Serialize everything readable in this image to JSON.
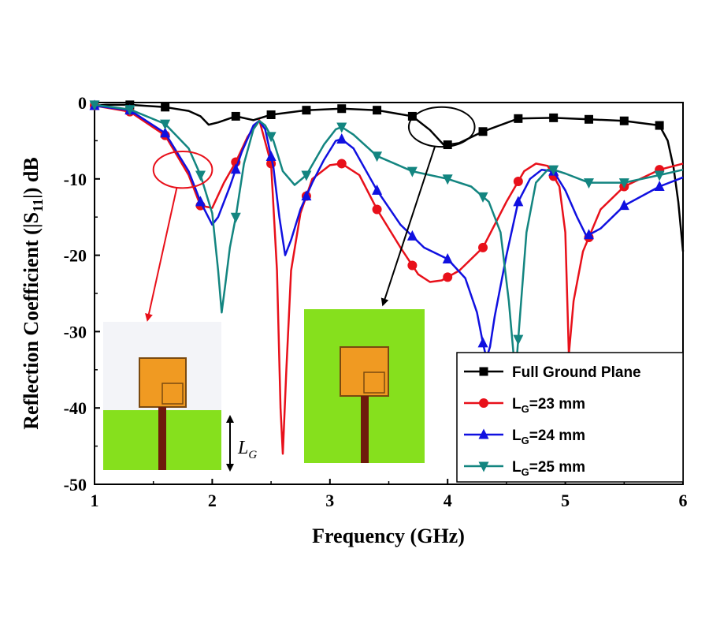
{
  "colors": {
    "full": "#000000",
    "lg23": "#e8101a",
    "lg24": "#1010e0",
    "lg25": "#138580",
    "substrate": "#f3f4f8",
    "ground": "#86e01d",
    "patch": "#f09a22",
    "patch_border": "#7a4a10",
    "feed": "#6e1a0c"
  },
  "chart_data": {
    "type": "line",
    "xlabel": "Frequency (GHz)",
    "ylabel": "Reflection Coefficient (|S",
    "ylabel_sub": "11",
    "ylabel_tail": "|) dB",
    "xlim": [
      1,
      6
    ],
    "ylim": [
      -50,
      0
    ],
    "xticks": [
      1,
      2,
      3,
      4,
      5,
      6
    ],
    "yticks": [
      0,
      -10,
      -20,
      -30,
      -40,
      -50
    ],
    "legend_position": "bottom-right",
    "series": [
      {
        "name": "Full Ground Plane",
        "legend_main": "Full Ground Plane",
        "legend_sub": "",
        "legend_tail": "",
        "color_key": "full",
        "marker": "square",
        "x": [
          1.0,
          1.1,
          1.3,
          1.6,
          1.8,
          1.9,
          1.97,
          2.05,
          2.2,
          2.35,
          2.5,
          2.8,
          3.1,
          3.4,
          3.7,
          3.85,
          3.97,
          4.1,
          4.3,
          4.6,
          4.9,
          5.2,
          5.5,
          5.8,
          5.87,
          5.92,
          5.96,
          6.0
        ],
        "y": [
          -0.4,
          -0.3,
          -0.3,
          -0.6,
          -1.1,
          -1.8,
          -2.9,
          -2.6,
          -1.8,
          -2.3,
          -1.6,
          -1.0,
          -0.8,
          -1.0,
          -1.8,
          -3.6,
          -5.6,
          -5.3,
          -3.8,
          -2.1,
          -2.0,
          -2.2,
          -2.4,
          -3.0,
          -5.0,
          -8.5,
          -13.0,
          -19.5
        ],
        "marker_x": [
          1.0,
          1.3,
          1.6,
          2.2,
          2.5,
          2.8,
          3.1,
          3.4,
          3.7,
          4.0,
          4.3,
          4.6,
          4.9,
          5.2,
          5.5,
          5.8
        ]
      },
      {
        "name": "LG=23 mm",
        "legend_main": "L",
        "legend_sub": "G",
        "legend_tail": "=23 mm",
        "color_key": "lg23",
        "marker": "circle",
        "x": [
          1.0,
          1.3,
          1.6,
          1.8,
          1.9,
          2.0,
          2.1,
          2.2,
          2.3,
          2.4,
          2.5,
          2.55,
          2.58,
          2.6,
          2.63,
          2.67,
          2.75,
          2.85,
          3.0,
          3.1,
          3.25,
          3.4,
          3.6,
          3.75,
          3.85,
          3.95,
          4.1,
          4.3,
          4.5,
          4.65,
          4.75,
          4.85,
          4.95,
          5.0,
          5.03,
          5.07,
          5.15,
          5.3,
          5.5,
          5.8,
          6.0
        ],
        "y": [
          -0.4,
          -1.2,
          -4.3,
          -9.5,
          -13.5,
          -13.8,
          -10.5,
          -7.8,
          -4.5,
          -2.3,
          -8.0,
          -22.0,
          -40.0,
          -46.0,
          -35.0,
          -22.0,
          -14.5,
          -10.0,
          -8.2,
          -8.0,
          -9.5,
          -14.0,
          -19.0,
          -22.5,
          -23.5,
          -23.3,
          -22.0,
          -19.0,
          -13.0,
          -9.0,
          -8.0,
          -8.3,
          -11.0,
          -17.0,
          -33.0,
          -26.0,
          -19.5,
          -14.0,
          -11.0,
          -8.8,
          -8.0
        ]
      },
      {
        "name": "LG=24 mm",
        "legend_main": "L",
        "legend_sub": "G",
        "legend_tail": "=24 mm",
        "color_key": "lg24",
        "marker": "triangle-up",
        "x": [
          1.0,
          1.3,
          1.6,
          1.8,
          1.9,
          2.0,
          2.05,
          2.15,
          2.25,
          2.35,
          2.4,
          2.45,
          2.52,
          2.57,
          2.62,
          2.67,
          2.75,
          2.85,
          2.95,
          3.05,
          3.1,
          3.2,
          3.4,
          3.6,
          3.8,
          4.0,
          4.15,
          4.25,
          4.3,
          4.33,
          4.36,
          4.4,
          4.5,
          4.6,
          4.7,
          4.8,
          4.9,
          5.0,
          5.1,
          5.18,
          5.3,
          5.5,
          5.8,
          6.0
        ],
        "y": [
          -0.4,
          -1.0,
          -4.0,
          -9.0,
          -13.0,
          -16.0,
          -15.0,
          -11.0,
          -6.5,
          -3.0,
          -2.4,
          -3.5,
          -8.5,
          -15.0,
          -20.0,
          -18.0,
          -14.0,
          -10.5,
          -7.5,
          -5.0,
          -4.8,
          -6.0,
          -11.5,
          -16.0,
          -19.0,
          -20.5,
          -23.0,
          -27.5,
          -31.5,
          -33.5,
          -32.0,
          -28.0,
          -20.0,
          -13.0,
          -10.0,
          -8.8,
          -9.0,
          -11.5,
          -15.0,
          -17.5,
          -16.5,
          -13.5,
          -11.0,
          -9.8
        ]
      },
      {
        "name": "LG=25 mm",
        "legend_main": "L",
        "legend_sub": "G",
        "legend_tail": "=25 mm",
        "color_key": "lg25",
        "marker": "triangle-down",
        "x": [
          1.0,
          1.3,
          1.6,
          1.8,
          1.9,
          2.0,
          2.05,
          2.08,
          2.11,
          2.15,
          2.2,
          2.27,
          2.35,
          2.4,
          2.45,
          2.52,
          2.6,
          2.7,
          2.8,
          2.95,
          3.05,
          3.1,
          3.2,
          3.4,
          3.7,
          4.0,
          4.2,
          4.35,
          4.45,
          4.52,
          4.56,
          4.58,
          4.62,
          4.67,
          4.75,
          4.85,
          4.9,
          5.0,
          5.2,
          5.5,
          5.8,
          6.0
        ],
        "y": [
          -0.3,
          -0.9,
          -2.8,
          -6.0,
          -9.5,
          -14.5,
          -22.0,
          -27.5,
          -24.0,
          -19.0,
          -15.0,
          -8.0,
          -3.5,
          -2.4,
          -3.0,
          -5.0,
          -9.0,
          -10.8,
          -9.5,
          -5.5,
          -3.5,
          -3.2,
          -4.2,
          -7.0,
          -9.0,
          -10.0,
          -11.0,
          -13.0,
          -17.0,
          -26.0,
          -33.0,
          -35.0,
          -27.0,
          -17.0,
          -10.5,
          -8.8,
          -8.8,
          -9.3,
          -10.5,
          -10.5,
          -9.5,
          -8.8
        ]
      }
    ],
    "annotations": [
      {
        "type": "ellipse",
        "color_key": "lg23",
        "cx": 1.75,
        "cy": -8.8,
        "rx": 0.25,
        "ry": 2.4,
        "arrow_to_x": 1.45,
        "arrow_to_y": -28.5
      },
      {
        "type": "ellipse",
        "color_key": "full",
        "cx": 3.95,
        "cy": -3.2,
        "rx": 0.28,
        "ry": 2.6,
        "arrow_to_x": 3.45,
        "arrow_to_y": -26.5
      }
    ],
    "insets": [
      {
        "name": "partial-ground-structure",
        "label_main": "L",
        "label_sub": "G"
      },
      {
        "name": "full-ground-structure"
      }
    ]
  }
}
